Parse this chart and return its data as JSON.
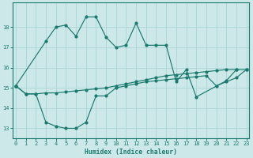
{
  "xlabel": "Humidex (Indice chaleur)",
  "bg_color": "#cce8e8",
  "line_color": "#1a7a6e",
  "grid_color": "#aad4d4",
  "xlim": [
    -0.3,
    23.3
  ],
  "ylim": [
    12.5,
    19.2
  ],
  "yticks": [
    13,
    14,
    15,
    16,
    17,
    18
  ],
  "xticks": [
    0,
    1,
    2,
    3,
    4,
    5,
    6,
    7,
    8,
    9,
    10,
    11,
    12,
    13,
    14,
    15,
    16,
    17,
    18,
    19,
    20,
    21,
    22,
    23
  ],
  "line1_x": [
    0,
    3,
    4,
    5,
    6,
    7,
    8,
    9,
    10,
    11,
    12,
    13,
    14,
    15,
    16,
    17,
    18,
    21,
    22,
    23
  ],
  "line1_y": [
    15.1,
    17.3,
    18.0,
    18.1,
    17.55,
    18.5,
    18.5,
    17.5,
    17.0,
    17.1,
    18.2,
    17.1,
    17.1,
    17.1,
    15.3,
    15.9,
    14.55,
    15.35,
    15.9,
    null
  ],
  "line2_x": [
    0,
    1,
    2,
    3,
    4,
    5,
    6,
    7,
    8,
    9,
    10,
    11,
    12,
    13,
    14,
    15,
    16,
    17,
    18,
    19,
    20,
    21,
    22,
    23
  ],
  "line2_y": [
    15.1,
    14.7,
    14.7,
    14.75,
    14.75,
    14.8,
    14.85,
    14.9,
    14.95,
    15.0,
    15.1,
    15.2,
    15.3,
    15.4,
    15.5,
    15.6,
    15.65,
    15.7,
    15.75,
    15.8,
    15.85,
    15.9,
    15.9,
    15.9
  ],
  "line3_x": [
    0,
    1,
    2,
    3,
    4,
    5,
    6,
    7,
    8,
    9,
    10,
    11,
    12,
    13,
    14,
    15,
    16,
    17,
    18,
    19,
    20,
    21,
    22,
    23
  ],
  "line3_y": [
    15.1,
    14.7,
    14.7,
    13.3,
    13.1,
    13.0,
    13.0,
    13.3,
    14.6,
    14.6,
    15.0,
    15.1,
    15.2,
    15.3,
    15.35,
    15.4,
    15.45,
    15.5,
    15.55,
    15.6,
    15.1,
    15.3,
    15.5,
    15.9
  ]
}
